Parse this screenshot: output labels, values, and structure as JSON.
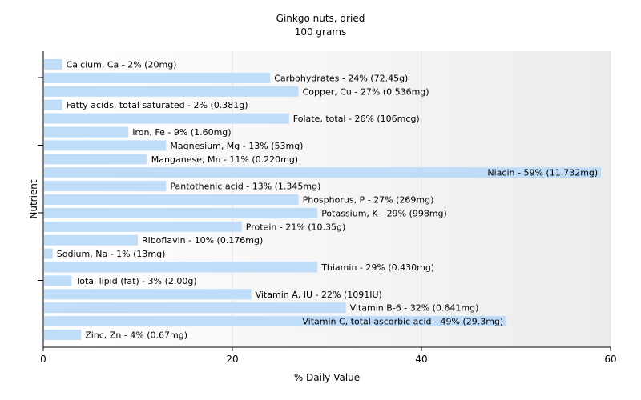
{
  "chart_data": {
    "type": "bar",
    "orientation": "horizontal",
    "title": "Ginkgo nuts, dried",
    "subtitle": "100 grams",
    "xlabel": "% Daily Value",
    "ylabel": "Nutrient",
    "xlim": [
      0,
      60
    ],
    "x_ticks": [
      "0",
      "20",
      "40",
      "60"
    ],
    "grid": true,
    "bar_color": "#bfdcf9",
    "categories": [
      "Calcium, Ca",
      "Carbohydrates",
      "Copper, Cu",
      "Fatty acids, total saturated",
      "Folate, total",
      "Iron, Fe",
      "Magnesium, Mg",
      "Manganese, Mn",
      "Niacin",
      "Pantothenic acid",
      "Phosphorus, P",
      "Potassium, K",
      "Protein",
      "Riboflavin",
      "Sodium, Na",
      "Thiamin",
      "Total lipid (fat)",
      "Vitamin A, IU",
      "Vitamin B-6",
      "Vitamin C, total ascorbic acid",
      "Zinc, Zn"
    ],
    "values": [
      2,
      24,
      27,
      2,
      26,
      9,
      13,
      11,
      59,
      13,
      27,
      29,
      21,
      10,
      1,
      29,
      3,
      22,
      32,
      49,
      4
    ],
    "labels": [
      "Calcium, Ca - 2% (20mg)",
      "Carbohydrates - 24% (72.45g)",
      "Copper, Cu - 27% (0.536mg)",
      "Fatty acids, total saturated - 2% (0.381g)",
      "Folate, total - 26% (106mcg)",
      "Iron, Fe - 9% (1.60mg)",
      "Magnesium, Mg - 13% (53mg)",
      "Manganese, Mn - 11% (0.220mg)",
      "Niacin - 59% (11.732mg)",
      "Pantothenic acid - 13% (1.345mg)",
      "Phosphorus, P - 27% (269mg)",
      "Potassium, K - 29% (998mg)",
      "Protein - 21% (10.35g)",
      "Riboflavin - 10% (0.176mg)",
      "Sodium, Na - 1% (13mg)",
      "Thiamin - 29% (0.430mg)",
      "Total lipid (fat) - 3% (2.00g)",
      "Vitamin A, IU - 22% (1091IU)",
      "Vitamin B-6 - 32% (0.641mg)",
      "Vitamin C, total ascorbic acid - 49% (29.3mg)",
      "Zinc, Zn - 4% (0.67mg)"
    ]
  }
}
